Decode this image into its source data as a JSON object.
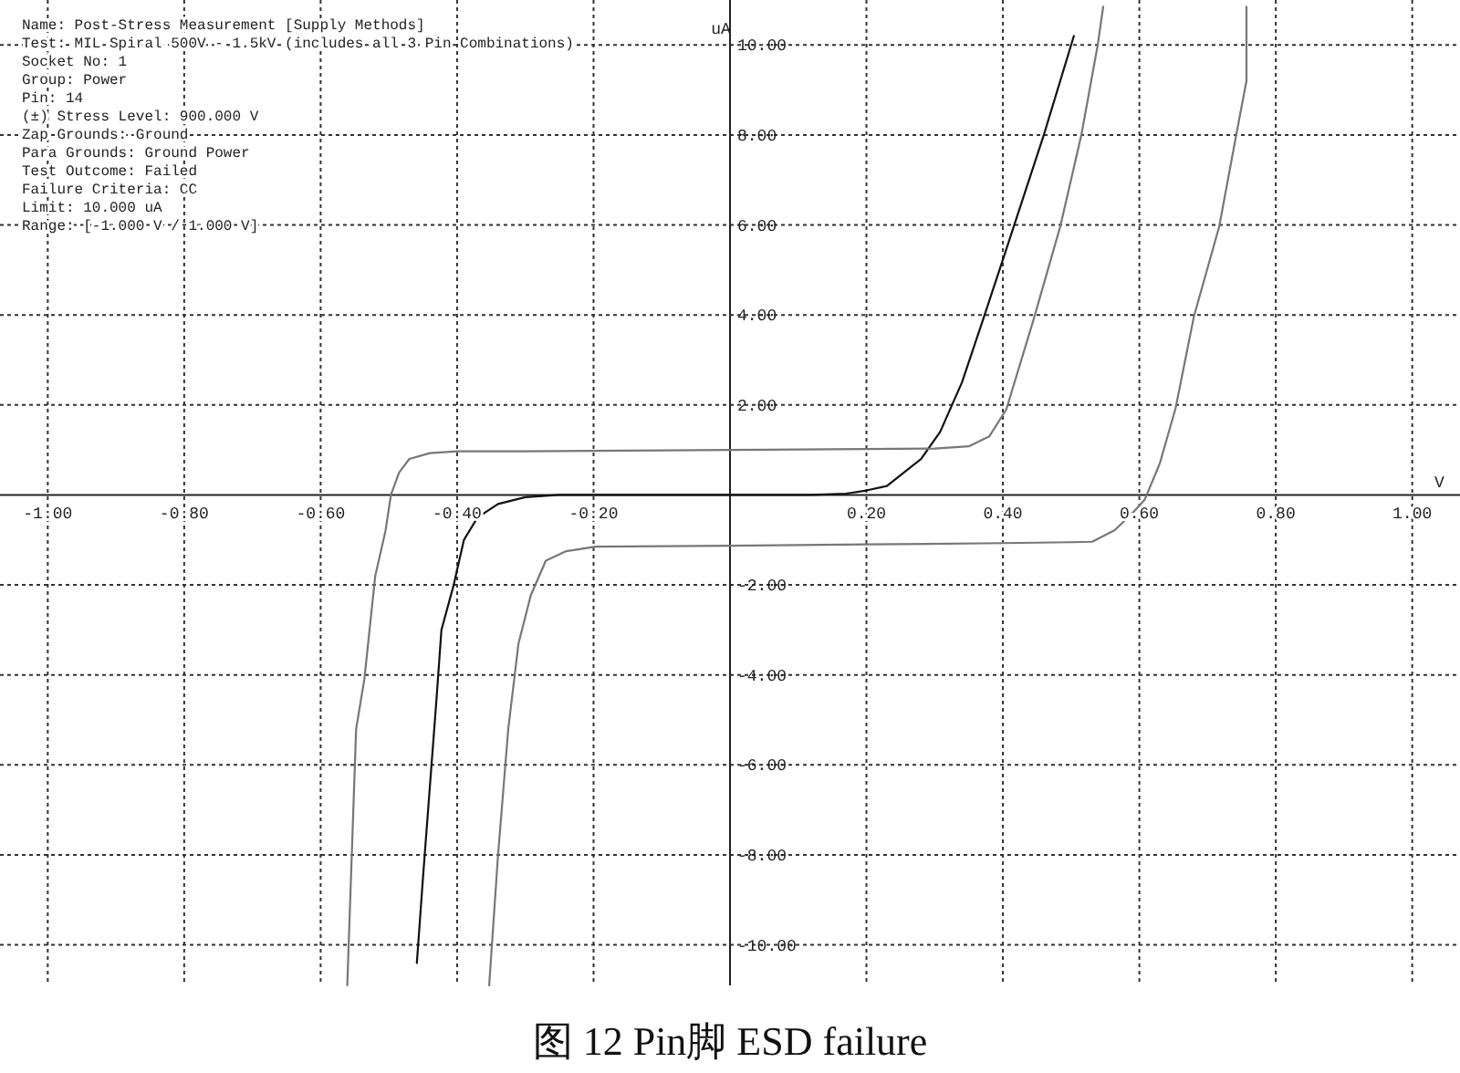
{
  "chart_data": {
    "type": "line",
    "title": "图 12 Pin脚 ESD failure",
    "xlabel": "V",
    "ylabel": "uA",
    "annotations": [
      "Name: Post-Stress Measurement [Supply Methods]",
      "Test: MIL Spiral 500V - 1.5kV (includes all 3 Pin Combinations)",
      "Socket No: 1",
      "Group: Power",
      "Pin: 14",
      "(±) Stress Level: 900.000 V",
      "Zap Grounds: Ground",
      "Para Grounds: Ground Power",
      "Test Outcome: Failed",
      "Failure Criteria: CC",
      "Limit: 10.000 uA",
      "Range: [-1.000 V / 1.000 V]"
    ],
    "xlim": [
      -1.07,
      1.07
    ],
    "ylim": [
      -10.9,
      11.0
    ],
    "xticks": [
      {
        "value": -1,
        "label": "-1.00"
      },
      {
        "value": -0.8,
        "label": "-0.80"
      },
      {
        "value": -0.6,
        "label": "-0.60"
      },
      {
        "value": -0.4,
        "label": "-0.40"
      },
      {
        "value": -0.2,
        "label": "-0.20"
      },
      {
        "value": 0,
        "label": null
      },
      {
        "value": 0.2,
        "label": "0.20"
      },
      {
        "value": 0.4,
        "label": "0.40"
      },
      {
        "value": 0.6,
        "label": "0.60"
      },
      {
        "value": 0.8,
        "label": "0.80"
      },
      {
        "value": 1,
        "label": "1.00"
      }
    ],
    "yticks": [
      {
        "value": -10,
        "label": "-10.00"
      },
      {
        "value": -8,
        "label": "-8.00"
      },
      {
        "value": -6,
        "label": "-6.00"
      },
      {
        "value": -4,
        "label": "-4.00"
      },
      {
        "value": -2,
        "label": "-2.00"
      },
      {
        "value": 0,
        "label": null
      },
      {
        "value": 2,
        "label": "2.00"
      },
      {
        "value": 4,
        "label": "4.00"
      },
      {
        "value": 6,
        "label": "6.00"
      },
      {
        "value": 8,
        "label": "8.00"
      },
      {
        "value": 10,
        "label": "10.00"
      }
    ],
    "grid": true,
    "line_style": "solid",
    "series": [
      {
        "color": "#111111",
        "x": [
          -0.459,
          -0.45,
          -0.44,
          -0.43,
          -0.423,
          -0.405,
          -0.39,
          -0.37,
          -0.34,
          -0.3,
          -0.25,
          -0.22,
          0.12,
          0.17,
          0.2,
          0.23,
          0.28,
          0.308,
          0.34,
          0.371,
          0.408,
          0.46,
          0.504
        ],
        "values": [
          -10.4,
          -8.5,
          -6.5,
          -4.5,
          -3,
          -2,
          -1,
          -0.5,
          -0.2,
          -0.05,
          0,
          0,
          0,
          0.03,
          0.1,
          0.2,
          0.8,
          1.4,
          2.5,
          3.9,
          5.6,
          8,
          10.2
        ]
      },
      {
        "color": "#777777",
        "x": [
          -0.561,
          -0.548,
          -0.536,
          -0.52,
          -0.505,
          -0.497,
          -0.485,
          -0.47,
          -0.44,
          -0.4,
          -0.3,
          -0.2,
          0,
          0.2,
          0.3,
          0.35,
          0.38,
          0.405,
          0.445,
          0.484,
          0.515,
          0.539,
          0.547
        ],
        "values": [
          -10.9,
          -5.2,
          -4.1,
          -1.8,
          -0.8,
          0,
          0.5,
          0.8,
          0.93,
          0.97,
          0.97,
          0.98,
          1.0,
          1.02,
          1.03,
          1.08,
          1.3,
          1.9,
          3.9,
          5.96,
          8.0,
          10.0,
          10.85
        ]
      },
      {
        "color": "#777777",
        "x": [
          -0.353,
          -0.34,
          -0.325,
          -0.31,
          -0.292,
          -0.27,
          -0.24,
          -0.197,
          0,
          0.2,
          0.4,
          0.5,
          0.531,
          0.564,
          0.59,
          0.608,
          0.63,
          0.653,
          0.68,
          0.717,
          0.742,
          0.757,
          0.757
        ],
        "values": [
          -10.9,
          -8,
          -5.2,
          -3.3,
          -2.23,
          -1.46,
          -1.25,
          -1.15,
          -1.13,
          -1.1,
          -1.07,
          -1.05,
          -1.04,
          -0.78,
          -0.4,
          -0.1,
          0.7,
          1.92,
          3.97,
          5.96,
          8.0,
          9.2,
          10.85
        ]
      }
    ]
  }
}
